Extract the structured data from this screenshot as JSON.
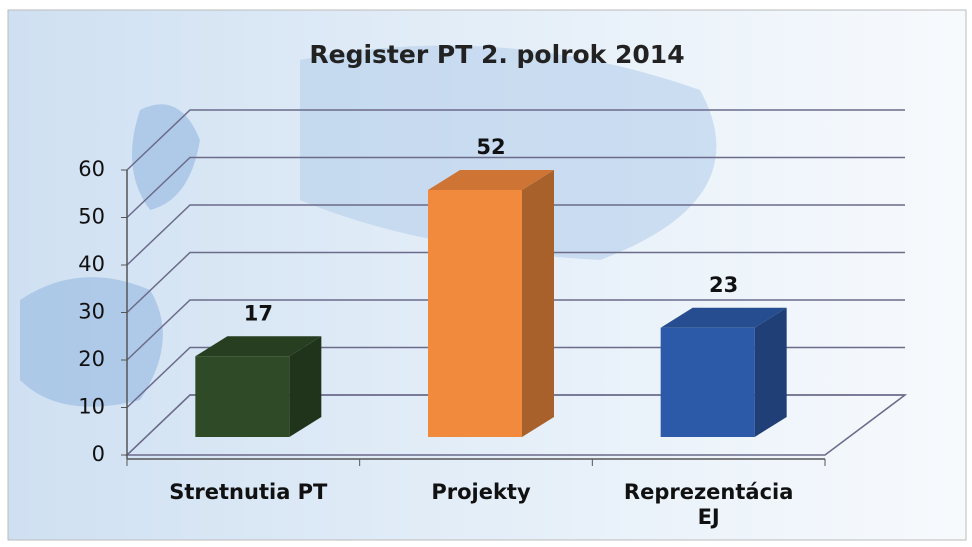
{
  "chart_data": {
    "type": "bar3d",
    "title": "Register PT 2. polrok 2014",
    "categories": [
      "Stretnutia PT",
      "Projekty",
      "Reprezentácia EJ"
    ],
    "values": [
      17,
      52,
      23
    ],
    "colors": [
      "#2e4a26",
      "#f28a3e",
      "#2d5aa8"
    ],
    "ylim": [
      0,
      60
    ],
    "yticks": [
      0,
      10,
      20,
      30,
      40,
      50,
      60
    ],
    "grid": true
  }
}
